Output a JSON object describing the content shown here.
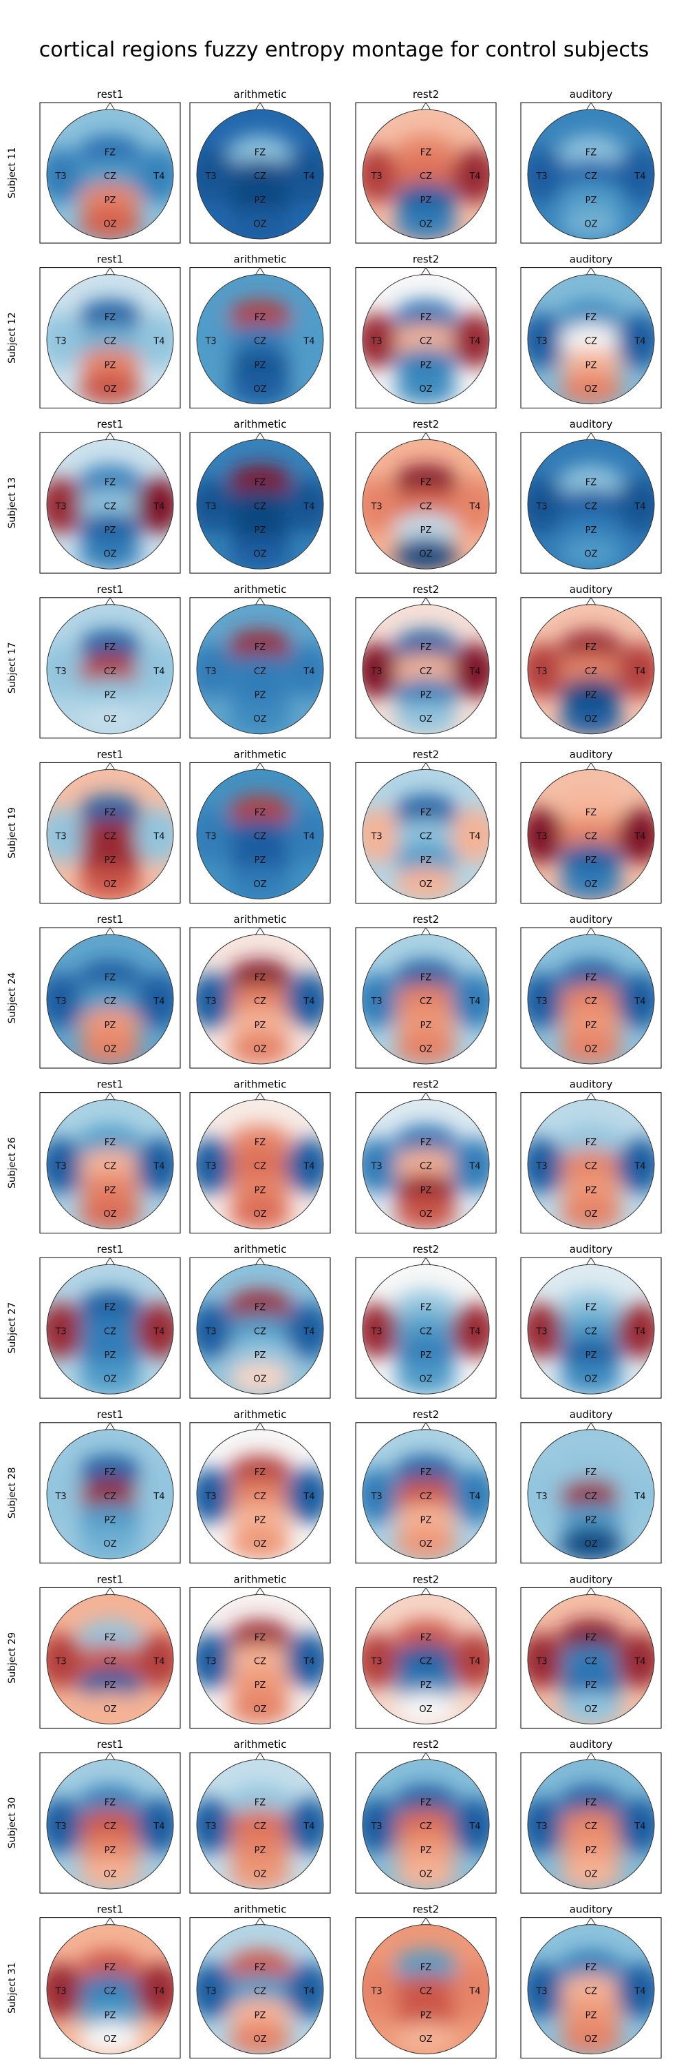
{
  "chart_data": {
    "type": "heatmap",
    "title": "cortical regions fuzzy entropy montage for control subjects",
    "conditions": [
      "rest1",
      "arithmetic",
      "rest2",
      "auditory"
    ],
    "subjects": [
      "Subject 11",
      "Subject 12",
      "Subject 13",
      "Subject 17",
      "Subject 19",
      "Subject 24",
      "Subject 26",
      "Subject 27",
      "Subject 28",
      "Subject 29",
      "Subject 30",
      "Subject 31"
    ],
    "electrodes": [
      "FZ",
      "T3",
      "CZ",
      "T4",
      "PZ",
      "OZ"
    ],
    "colormap": "RdBu (blue = low, red = high)",
    "values_normalized": [
      [
        [
          0.15,
          0.2,
          0.3,
          0.22,
          0.7,
          0.78
        ],
        [
          0.4,
          0.08,
          0.06,
          0.08,
          0.05,
          0.1
        ],
        [
          0.7,
          0.85,
          0.75,
          0.9,
          0.1,
          0.2
        ],
        [
          0.4,
          0.1,
          0.12,
          0.1,
          0.3,
          0.35
        ]
      ],
      [
        [
          0.1,
          0.4,
          0.35,
          0.4,
          0.7,
          0.8
        ],
        [
          0.85,
          0.3,
          0.2,
          0.3,
          0.08,
          0.1
        ],
        [
          0.15,
          0.9,
          0.6,
          0.9,
          0.2,
          0.25
        ],
        [
          0.25,
          0.1,
          0.5,
          0.1,
          0.6,
          0.7
        ]
      ],
      [
        [
          0.2,
          0.9,
          0.4,
          0.95,
          0.1,
          0.2
        ],
        [
          0.95,
          0.08,
          0.05,
          0.08,
          0.05,
          0.1
        ],
        [
          0.95,
          0.7,
          0.75,
          0.7,
          0.45,
          0.05
        ],
        [
          0.4,
          0.08,
          0.1,
          0.08,
          0.2,
          0.3
        ]
      ],
      [
        [
          0.1,
          0.4,
          0.85,
          0.4,
          0.4,
          0.45
        ],
        [
          0.9,
          0.2,
          0.2,
          0.2,
          0.2,
          0.25
        ],
        [
          0.1,
          0.95,
          0.6,
          0.95,
          0.2,
          0.4
        ],
        [
          0.9,
          0.85,
          0.7,
          0.85,
          0.05,
          0.1
        ]
      ],
      [
        [
          0.1,
          0.4,
          0.9,
          0.4,
          0.9,
          0.8
        ],
        [
          0.85,
          0.2,
          0.1,
          0.2,
          0.1,
          0.2
        ],
        [
          0.1,
          0.6,
          0.4,
          0.6,
          0.3,
          0.6
        ],
        [
          0.6,
          0.95,
          0.7,
          0.95,
          0.1,
          0.2
        ]
      ],
      [
        [
          0.1,
          0.1,
          0.3,
          0.1,
          0.65,
          0.7
        ],
        [
          0.95,
          0.1,
          0.7,
          0.1,
          0.6,
          0.7
        ],
        [
          0.1,
          0.2,
          0.7,
          0.2,
          0.65,
          0.7
        ],
        [
          0.1,
          0.1,
          0.7,
          0.1,
          0.65,
          0.7
        ]
      ],
      [
        [
          0.3,
          0.1,
          0.6,
          0.1,
          0.7,
          0.75
        ],
        [
          0.7,
          0.1,
          0.75,
          0.1,
          0.7,
          0.75
        ],
        [
          0.15,
          0.2,
          0.6,
          0.2,
          0.9,
          0.8
        ],
        [
          0.4,
          0.1,
          0.7,
          0.1,
          0.65,
          0.7
        ]
      ],
      [
        [
          0.1,
          0.9,
          0.2,
          0.9,
          0.2,
          0.3
        ],
        [
          0.9,
          0.1,
          0.3,
          0.1,
          0.4,
          0.55
        ],
        [
          0.4,
          0.9,
          0.3,
          0.9,
          0.2,
          0.3
        ],
        [
          0.4,
          0.9,
          0.3,
          0.9,
          0.1,
          0.25
        ]
      ],
      [
        [
          0.1,
          0.4,
          0.9,
          0.4,
          0.3,
          0.35
        ],
        [
          0.85,
          0.1,
          0.7,
          0.1,
          0.6,
          0.65
        ],
        [
          0.1,
          0.2,
          0.8,
          0.2,
          0.6,
          0.65
        ],
        [
          0.4,
          0.4,
          0.9,
          0.4,
          0.3,
          0.05
        ]
      ],
      [
        [
          0.4,
          0.85,
          0.8,
          0.85,
          0.1,
          0.6
        ],
        [
          0.9,
          0.1,
          0.6,
          0.1,
          0.65,
          0.7
        ],
        [
          0.8,
          0.85,
          0.1,
          0.85,
          0.2,
          0.5
        ],
        [
          0.95,
          0.9,
          0.2,
          0.9,
          0.15,
          0.4
        ]
      ],
      [
        [
          0.2,
          0.1,
          0.8,
          0.1,
          0.7,
          0.6
        ],
        [
          0.4,
          0.1,
          0.75,
          0.1,
          0.7,
          0.65
        ],
        [
          0.1,
          0.1,
          0.75,
          0.1,
          0.65,
          0.6
        ],
        [
          0.1,
          0.1,
          0.7,
          0.1,
          0.65,
          0.6
        ]
      ],
      [
        [
          0.8,
          0.9,
          0.2,
          0.9,
          0.3,
          0.5
        ],
        [
          0.8,
          0.1,
          0.3,
          0.1,
          0.6,
          0.7
        ],
        [
          0.3,
          0.7,
          0.8,
          0.7,
          0.8,
          0.6
        ],
        [
          0.2,
          0.1,
          0.6,
          0.1,
          0.65,
          0.7
        ]
      ]
    ]
  }
}
